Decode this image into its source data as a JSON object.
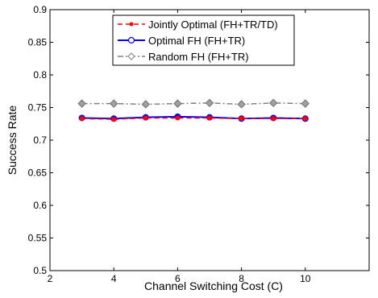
{
  "chart_data": {
    "type": "line",
    "title": "",
    "xlabel": "Channel Switching Cost (C)",
    "ylabel": "Success Rate",
    "xlim": [
      2,
      12
    ],
    "ylim": [
      0.5,
      0.9
    ],
    "xticks": [
      2,
      4,
      6,
      8,
      10
    ],
    "yticks": [
      0.5,
      0.55,
      0.6,
      0.65,
      0.7,
      0.75,
      0.8,
      0.85,
      0.9
    ],
    "grid": false,
    "legend_position": "top-center",
    "x": [
      3,
      4,
      5,
      6,
      7,
      8,
      9,
      10
    ],
    "series": [
      {
        "name": "Jointly Optimal (FH+TR/TD)",
        "values": [
          0.733,
          0.732,
          0.734,
          0.734,
          0.734,
          0.733,
          0.733,
          0.733
        ],
        "color": "#ff0000",
        "line_style": "dashed",
        "marker": "dot"
      },
      {
        "name": "Optimal FH (FH+TR)",
        "values": [
          0.734,
          0.733,
          0.735,
          0.736,
          0.735,
          0.733,
          0.734,
          0.733
        ],
        "color": "#0000ff",
        "line_style": "solid",
        "marker": "circle"
      },
      {
        "name": "Random FH (FH+TR)",
        "values": [
          0.756,
          0.756,
          0.755,
          0.756,
          0.757,
          0.755,
          0.757,
          0.756
        ],
        "color": "#808080",
        "line_style": "dash-dot",
        "marker": "diamond"
      }
    ]
  }
}
